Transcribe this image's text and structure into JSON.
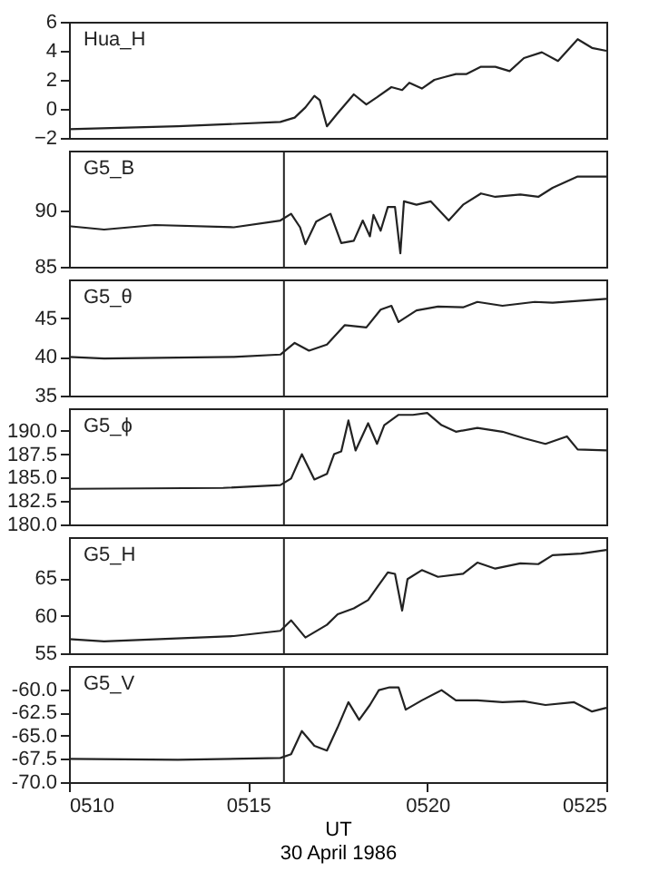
{
  "chart_data": [
    {
      "type": "line",
      "title": "Hua_H",
      "color": "#222222",
      "xlim": [
        510,
        525
      ],
      "ylim": [
        -2,
        6
      ],
      "yticks": [
        -2,
        0,
        2,
        4,
        6
      ],
      "tick_labels": "y",
      "x": [
        510,
        513.04,
        515.9,
        516.3,
        516.6,
        516.85,
        517.0,
        517.2,
        517.5,
        517.95,
        518.3,
        518.6,
        519.0,
        519.3,
        519.5,
        519.85,
        520.2,
        520.5,
        520.8,
        521.1,
        521.5,
        521.9,
        522.3,
        522.7,
        523.2,
        523.65,
        524.2,
        524.6,
        525
      ],
      "values": [
        -1.4,
        -1.2,
        -0.9,
        -0.6,
        0.1,
        0.9,
        0.6,
        -1.2,
        -0.3,
        1.0,
        0.3,
        0.8,
        1.5,
        1.3,
        1.8,
        1.4,
        2.0,
        2.2,
        2.4,
        2.4,
        2.9,
        2.9,
        2.6,
        3.5,
        3.9,
        3.3,
        4.8,
        4.2,
        4.0
      ]
    },
    {
      "type": "line",
      "title": "G5_B",
      "color": "#222222",
      "xlim": [
        510,
        525
      ],
      "ylim": [
        85,
        95.3
      ],
      "yticks": [
        85,
        90
      ],
      "tick_labels": "y",
      "ref_lines": [
        {
          "axis": "x",
          "value": 516.0
        }
      ],
      "x": [
        510,
        510.98,
        512.4,
        514.6,
        515.9,
        516.2,
        516.45,
        516.6,
        516.9,
        517.3,
        517.6,
        517.95,
        518.2,
        518.4,
        518.5,
        518.7,
        518.9,
        519.1,
        519.25,
        519.35,
        519.7,
        520.1,
        520.6,
        521.0,
        521.5,
        521.9,
        522.6,
        523.1,
        523.5,
        524.2,
        525
      ],
      "values": [
        88.6,
        88.3,
        88.7,
        88.5,
        89.1,
        89.7,
        88.5,
        87.0,
        89.0,
        89.7,
        87.1,
        87.3,
        89.1,
        87.7,
        89.6,
        88.2,
        90.3,
        90.3,
        86.2,
        90.8,
        90.5,
        90.8,
        89.1,
        90.5,
        91.5,
        91.2,
        91.4,
        91.2,
        92.0,
        93.0,
        93.0
      ]
    },
    {
      "type": "line",
      "title": "G5_θ",
      "color": "#222222",
      "xlim": [
        510,
        525
      ],
      "ylim": [
        35,
        50
      ],
      "yticks": [
        35,
        40,
        45
      ],
      "tick_labels": "y",
      "ref_lines": [
        {
          "axis": "x",
          "value": 516.0
        }
      ],
      "x": [
        510,
        510.98,
        514.6,
        515.9,
        516.3,
        516.7,
        517.2,
        517.7,
        518.3,
        518.7,
        519.0,
        519.2,
        519.7,
        520.3,
        521.0,
        521.4,
        522.1,
        523.0,
        523.5,
        525
      ],
      "values": [
        40.0,
        39.8,
        40.0,
        40.3,
        41.8,
        40.8,
        41.6,
        44.1,
        43.8,
        46.1,
        46.6,
        44.5,
        46.0,
        46.5,
        46.4,
        47.1,
        46.6,
        47.1,
        47.0,
        47.5
      ]
    },
    {
      "type": "line",
      "title": "G5_ϕ",
      "color": "#222222",
      "xlim": [
        510,
        525
      ],
      "ylim": [
        180,
        192.4
      ],
      "yticks": [
        {
          "value": 180,
          "label": "180.0"
        },
        {
          "value": 182.5,
          "label": "182.5"
        },
        {
          "value": 185,
          "label": "185.0"
        },
        {
          "value": 187.5,
          "label": "187.5"
        },
        {
          "value": 190,
          "label": "190.0"
        }
      ],
      "tick_labels": "y",
      "ref_lines": [
        {
          "axis": "x",
          "value": 516.0
        }
      ],
      "x": [
        510,
        514.3,
        515.9,
        516.2,
        516.5,
        516.85,
        517.2,
        517.4,
        517.6,
        517.8,
        518.0,
        518.35,
        518.6,
        518.8,
        519.2,
        519.6,
        520.0,
        520.4,
        520.8,
        521.4,
        522.1,
        522.7,
        523.3,
        523.9,
        524.2,
        525
      ],
      "values": [
        183.8,
        183.9,
        184.2,
        184.9,
        187.5,
        184.8,
        185.4,
        187.5,
        187.8,
        191.1,
        187.9,
        190.8,
        188.6,
        190.6,
        191.7,
        191.7,
        191.9,
        190.6,
        189.9,
        190.3,
        189.9,
        189.2,
        188.6,
        189.4,
        188.0,
        187.9
      ]
    },
    {
      "type": "line",
      "title": "G5_H",
      "color": "#222222",
      "xlim": [
        510,
        525
      ],
      "ylim": [
        55,
        70.5
      ],
      "yticks": [
        55,
        60,
        65
      ],
      "tick_labels": "y",
      "ref_lines": [
        {
          "axis": "x",
          "value": 516.0
        }
      ],
      "x": [
        510,
        510.98,
        514.6,
        515.9,
        516.2,
        516.6,
        517.2,
        517.5,
        517.95,
        518.35,
        518.6,
        518.9,
        519.1,
        519.3,
        519.45,
        519.85,
        520.3,
        521.0,
        521.4,
        521.9,
        522.6,
        523.1,
        523.5,
        524.3,
        525
      ],
      "values": [
        56.9,
        56.6,
        57.3,
        58.0,
        59.4,
        57.1,
        58.8,
        60.2,
        61.0,
        62.1,
        63.8,
        65.8,
        65.6,
        60.7,
        64.9,
        66.1,
        65.2,
        65.6,
        67.1,
        66.3,
        67.0,
        66.9,
        68.1,
        68.3,
        68.8
      ]
    },
    {
      "type": "line",
      "title": "G5_V",
      "color": "#222222",
      "xlim": [
        510,
        525
      ],
      "xticks": [
        {
          "value": 510,
          "label": "0510"
        },
        {
          "value": 515,
          "label": "0515"
        },
        {
          "value": 520,
          "label": "0520"
        },
        {
          "value": 525,
          "label": "0525"
        }
      ],
      "ylim": [
        -70,
        -57.5
      ],
      "yticks": [
        {
          "value": -70,
          "label": "-70.0"
        },
        {
          "value": -67.5,
          "label": "-67.5"
        },
        {
          "value": -65,
          "label": "-65.0"
        },
        {
          "value": -62.5,
          "label": "-62.5"
        },
        {
          "value": -60,
          "label": "-60.0"
        }
      ],
      "xlabel": "UT",
      "annotations": [
        "30 April 1986"
      ],
      "ref_lines": [
        {
          "axis": "x",
          "value": 516.0
        }
      ],
      "x": [
        510,
        513.04,
        515.9,
        516.2,
        516.5,
        516.85,
        517.2,
        517.5,
        517.8,
        518.1,
        518.4,
        518.65,
        518.95,
        519.2,
        519.4,
        519.85,
        520.4,
        520.8,
        521.4,
        522.1,
        522.7,
        523.3,
        524.1,
        524.6,
        525
      ],
      "values": [
        -67.5,
        -67.6,
        -67.4,
        -67.0,
        -64.5,
        -66.1,
        -66.6,
        -64.1,
        -61.4,
        -63.3,
        -61.7,
        -60.1,
        -59.8,
        -59.8,
        -62.2,
        -61.2,
        -60.1,
        -61.2,
        -61.2,
        -61.4,
        -61.3,
        -61.7,
        -61.4,
        -62.4,
        -62.0
      ]
    }
  ]
}
